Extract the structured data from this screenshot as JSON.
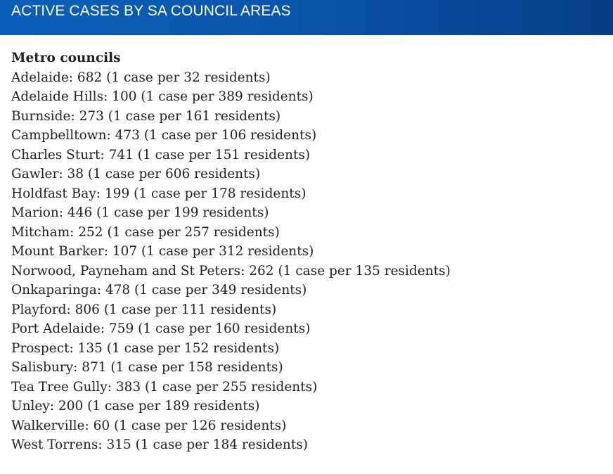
{
  "header": {
    "title": "ACTIVE CASES BY SA COUNCIL AREAS"
  },
  "section": {
    "heading": "Metro councils",
    "items": [
      {
        "text": "Adelaide: 682 (1 case per 32 residents)"
      },
      {
        "text": "Adelaide Hills: 100 (1 case per 389 residents)"
      },
      {
        "text": "Burnside: 273 (1 case per 161 residents)"
      },
      {
        "text": "Campbelltown: 473 (1 case per 106 residents)"
      },
      {
        "text": "Charles Sturt: 741 (1 case per 151 residents)"
      },
      {
        "text": "Gawler: 38 (1 case per 606 residents)"
      },
      {
        "text": "Holdfast Bay: 199 (1 case per 178 residents)"
      },
      {
        "text": "Marion: 446 (1 case per 199 residents)"
      },
      {
        "text": "Mitcham: 252 (1 case per 257 residents)"
      },
      {
        "text": "Mount Barker: 107 (1 case per 312 residents)"
      },
      {
        "text": "Norwood, Payneham and St Peters: 262 (1 case per 135 residents)"
      },
      {
        "text": "Onkaparinga: 478 (1 case per 349 residents)"
      },
      {
        "text": "Playford: 806 (1 case per 111 residents)"
      },
      {
        "text": "Port Adelaide: 759 (1 case per 160 residents)"
      },
      {
        "text": "Prospect: 135 (1 case per 152 residents)"
      },
      {
        "text": "Salisbury: 871 (1 case per 158 residents)"
      },
      {
        "text": "Tea Tree Gully: 383 (1 case per 255 residents)"
      },
      {
        "text": "Unley: 200 (1 case per 189 residents)"
      },
      {
        "text": "Walkerville: 60 (1 case per 126 residents)"
      },
      {
        "text": "West Torrens: 315 (1 case per 184 residents)"
      }
    ]
  }
}
